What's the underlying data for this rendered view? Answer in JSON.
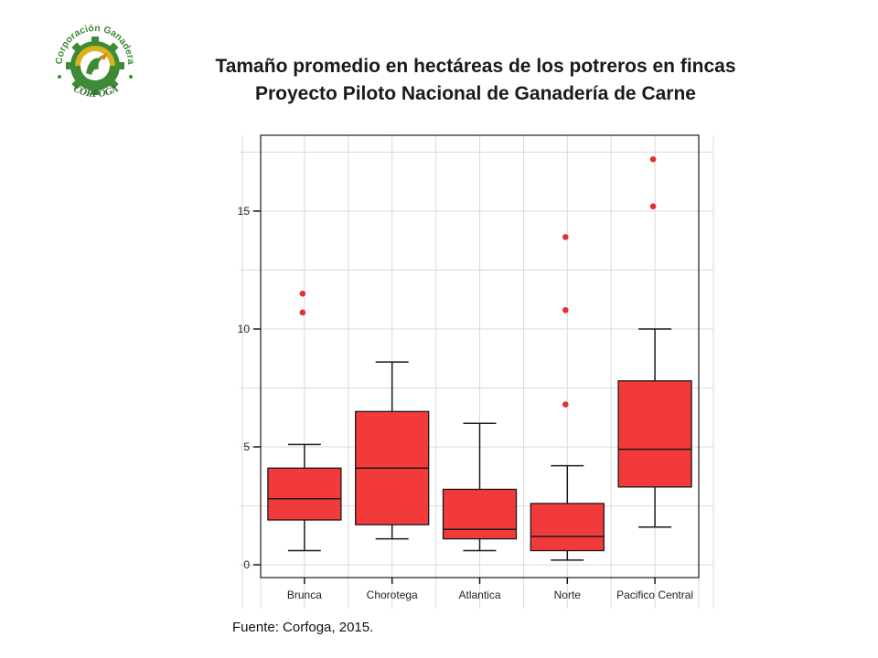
{
  "header": {
    "logo_text_top": "Corporación Ganadera",
    "logo_text_bottom": "CORFOGA",
    "title_line1": "Tamaño promedio en hectáreas de los potreros en fincas",
    "title_line2": "Proyecto Piloto Nacional de Ganadería de Carne"
  },
  "footer": {
    "source": "Fuente: Corfoga, 2015."
  },
  "colors": {
    "box_fill": "#f23a3a",
    "box_stroke": "#1a1a1a",
    "outlier": "#e53030",
    "grid": "#dadada",
    "logo_green": "#3d8b37",
    "logo_yellow": "#d9b21c",
    "logo_orange": "#e07b1f"
  },
  "chart_data": {
    "type": "box",
    "title": "",
    "xlabel": "",
    "ylabel": "",
    "ylim": [
      -0.5,
      18.3
    ],
    "yticks": [
      0,
      5,
      10,
      15
    ],
    "grid": true,
    "categories": [
      "Brunca",
      "Chorotega",
      "Atlantica",
      "Norte",
      "Pacifico Central"
    ],
    "boxes": [
      {
        "category": "Brunca",
        "whisker_low": 0.6,
        "q1": 1.9,
        "median": 2.8,
        "q3": 4.1,
        "whisker_high": 5.1,
        "outliers": [
          10.7,
          11.5
        ]
      },
      {
        "category": "Chorotega",
        "whisker_low": 1.1,
        "q1": 1.7,
        "median": 4.1,
        "q3": 6.5,
        "whisker_high": 8.6,
        "outliers": []
      },
      {
        "category": "Atlantica",
        "whisker_low": 0.6,
        "q1": 1.1,
        "median": 1.5,
        "q3": 3.2,
        "whisker_high": 6.0,
        "outliers": []
      },
      {
        "category": "Norte",
        "whisker_low": 0.2,
        "q1": 0.6,
        "median": 1.2,
        "q3": 2.6,
        "whisker_high": 4.2,
        "outliers": [
          6.8,
          10.8,
          13.9
        ]
      },
      {
        "category": "Pacifico Central",
        "whisker_low": 1.6,
        "q1": 3.3,
        "median": 4.9,
        "q3": 7.8,
        "whisker_high": 10.0,
        "outliers": [
          15.2,
          17.2
        ]
      }
    ]
  }
}
